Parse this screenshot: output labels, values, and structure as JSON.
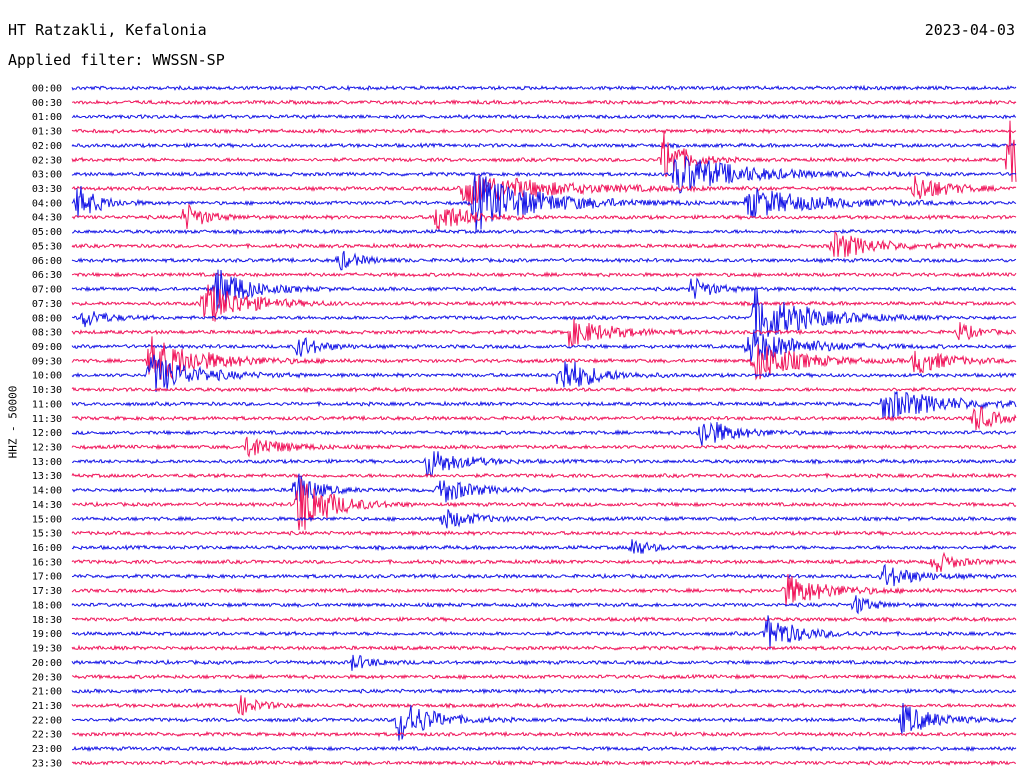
{
  "header": {
    "station": "HT Ratzakli, Kefalonia",
    "date": "2023-04-03",
    "filter": "Applied filter: WWSSN-SP"
  },
  "channel_label": "HHZ - 50000",
  "colors": {
    "blue": "#1414e6",
    "red": "#f0145a"
  },
  "chart_data": {
    "type": "line",
    "title": "HT Ratzakli, Kefalonia",
    "subtitle": "Applied filter: WWSSN-SP",
    "ylabel": "HHZ - 50000",
    "xlabel": "",
    "row_labels": [
      "00:00",
      "00:30",
      "01:00",
      "01:30",
      "02:00",
      "02:30",
      "03:00",
      "03:30",
      "04:00",
      "04:30",
      "05:00",
      "05:30",
      "06:00",
      "06:30",
      "07:00",
      "07:30",
      "08:00",
      "08:30",
      "09:00",
      "09:30",
      "10:00",
      "10:30",
      "11:00",
      "11:30",
      "12:00",
      "12:30",
      "13:00",
      "13:30",
      "14:00",
      "14:30",
      "15:00",
      "15:30",
      "16:00",
      "16:30",
      "17:00",
      "17:30",
      "18:00",
      "18:30",
      "19:00",
      "19:30",
      "20:00",
      "20:30",
      "21:00",
      "21:30",
      "22:00",
      "22:30",
      "23:00",
      "23:30"
    ],
    "trace_colors": [
      "blue",
      "red"
    ],
    "row_minutes": 30,
    "events": [
      {
        "row": 5,
        "minute": 18.8,
        "amplitude": 28,
        "duration": 1.0
      },
      {
        "row": 5,
        "minute": 29.8,
        "amplitude": 40,
        "duration": 0.8
      },
      {
        "row": 6,
        "minute": 19.2,
        "amplitude": 22,
        "duration": 3.0
      },
      {
        "row": 7,
        "minute": 12.4,
        "amplitude": 18,
        "duration": 4.0
      },
      {
        "row": 7,
        "minute": 26.8,
        "amplitude": 14,
        "duration": 1.5
      },
      {
        "row": 8,
        "minute": 0.2,
        "amplitude": 18,
        "duration": 1.0
      },
      {
        "row": 8,
        "minute": 12.8,
        "amplitude": 30,
        "duration": 3.0
      },
      {
        "row": 8,
        "minute": 21.5,
        "amplitude": 16,
        "duration": 3.0
      },
      {
        "row": 9,
        "minute": 3.6,
        "amplitude": 14,
        "duration": 1.0
      },
      {
        "row": 9,
        "minute": 11.6,
        "amplitude": 16,
        "duration": 1.5
      },
      {
        "row": 11,
        "minute": 24.2,
        "amplitude": 14,
        "duration": 2.0
      },
      {
        "row": 12,
        "minute": 8.5,
        "amplitude": 10,
        "duration": 1.0
      },
      {
        "row": 14,
        "minute": 4.6,
        "amplitude": 24,
        "duration": 1.5
      },
      {
        "row": 14,
        "minute": 19.7,
        "amplitude": 12,
        "duration": 1.0
      },
      {
        "row": 15,
        "minute": 4.2,
        "amplitude": 22,
        "duration": 2.0
      },
      {
        "row": 16,
        "minute": 0.4,
        "amplitude": 10,
        "duration": 1.0
      },
      {
        "row": 16,
        "minute": 21.7,
        "amplitude": 28,
        "duration": 2.5
      },
      {
        "row": 17,
        "minute": 15.8,
        "amplitude": 14,
        "duration": 2.0
      },
      {
        "row": 17,
        "minute": 28.2,
        "amplitude": 10,
        "duration": 0.8
      },
      {
        "row": 18,
        "minute": 7.2,
        "amplitude": 12,
        "duration": 1.0
      },
      {
        "row": 18,
        "minute": 21.5,
        "amplitude": 18,
        "duration": 2.5
      },
      {
        "row": 19,
        "minute": 2.5,
        "amplitude": 24,
        "duration": 2.5
      },
      {
        "row": 19,
        "minute": 21.7,
        "amplitude": 22,
        "duration": 2.0
      },
      {
        "row": 19,
        "minute": 26.8,
        "amplitude": 14,
        "duration": 1.5
      },
      {
        "row": 20,
        "minute": 2.5,
        "amplitude": 22,
        "duration": 2.0
      },
      {
        "row": 20,
        "minute": 15.5,
        "amplitude": 22,
        "duration": 1.5
      },
      {
        "row": 22,
        "minute": 25.8,
        "amplitude": 16,
        "duration": 3.0
      },
      {
        "row": 23,
        "minute": 28.7,
        "amplitude": 14,
        "duration": 1.0
      },
      {
        "row": 24,
        "minute": 20.0,
        "amplitude": 16,
        "duration": 1.5
      },
      {
        "row": 25,
        "minute": 5.6,
        "amplitude": 12,
        "duration": 1.5
      },
      {
        "row": 26,
        "minute": 11.3,
        "amplitude": 16,
        "duration": 1.5
      },
      {
        "row": 28,
        "minute": 7.1,
        "amplitude": 20,
        "duration": 1.0
      },
      {
        "row": 28,
        "minute": 11.7,
        "amplitude": 14,
        "duration": 1.5
      },
      {
        "row": 29,
        "minute": 7.2,
        "amplitude": 34,
        "duration": 1.5
      },
      {
        "row": 30,
        "minute": 11.8,
        "amplitude": 10,
        "duration": 1.5
      },
      {
        "row": 32,
        "minute": 17.8,
        "amplitude": 10,
        "duration": 0.8
      },
      {
        "row": 33,
        "minute": 27.4,
        "amplitude": 12,
        "duration": 1.0
      },
      {
        "row": 34,
        "minute": 25.8,
        "amplitude": 12,
        "duration": 1.5
      },
      {
        "row": 35,
        "minute": 22.7,
        "amplitude": 16,
        "duration": 2.0
      },
      {
        "row": 36,
        "minute": 24.9,
        "amplitude": 10,
        "duration": 0.8
      },
      {
        "row": 38,
        "minute": 22.1,
        "amplitude": 18,
        "duration": 1.5
      },
      {
        "row": 40,
        "minute": 8.9,
        "amplitude": 8,
        "duration": 1.0
      },
      {
        "row": 43,
        "minute": 5.3,
        "amplitude": 10,
        "duration": 1.0
      },
      {
        "row": 44,
        "minute": 10.4,
        "amplitude": 24,
        "duration": 1.5
      },
      {
        "row": 44,
        "minute": 26.4,
        "amplitude": 16,
        "duration": 1.5
      }
    ]
  }
}
